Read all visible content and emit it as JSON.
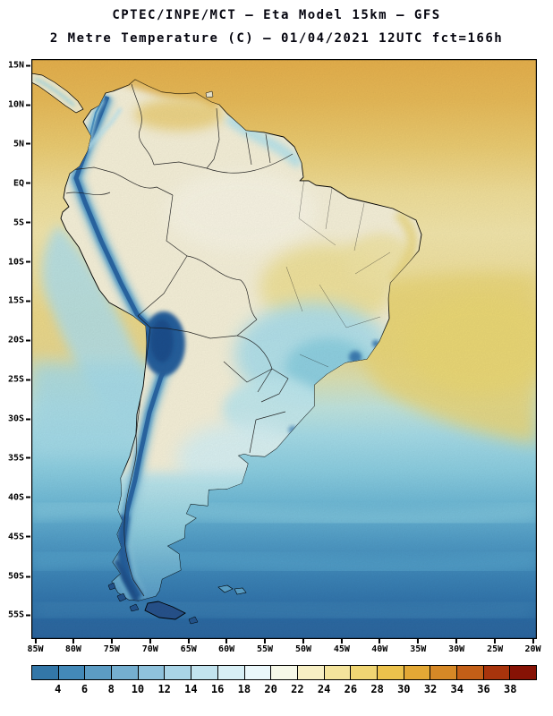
{
  "header": {
    "line1": "CPTEC/INPE/MCT —  Eta Model 15km — GFS",
    "line2": "2 Metre Temperature (C) — 01/04/2021 12UTC fct=166h"
  },
  "map": {
    "lat_ticks": [
      {
        "label": "15N",
        "pos": 0.011
      },
      {
        "label": "10N",
        "pos": 0.079
      },
      {
        "label": "5N",
        "pos": 0.146
      },
      {
        "label": "EQ",
        "pos": 0.214
      },
      {
        "label": "5S",
        "pos": 0.282
      },
      {
        "label": "10S",
        "pos": 0.35
      },
      {
        "label": "15S",
        "pos": 0.417
      },
      {
        "label": "20S",
        "pos": 0.485
      },
      {
        "label": "25S",
        "pos": 0.553
      },
      {
        "label": "30S",
        "pos": 0.621
      },
      {
        "label": "35S",
        "pos": 0.688
      },
      {
        "label": "40S",
        "pos": 0.756
      },
      {
        "label": "45S",
        "pos": 0.824
      },
      {
        "label": "50S",
        "pos": 0.892
      },
      {
        "label": "55S",
        "pos": 0.959
      }
    ],
    "lon_ticks": [
      {
        "label": "85W",
        "pos": 0.008
      },
      {
        "label": "80W",
        "pos": 0.083
      },
      {
        "label": "75W",
        "pos": 0.159
      },
      {
        "label": "70W",
        "pos": 0.235
      },
      {
        "label": "65W",
        "pos": 0.311
      },
      {
        "label": "60W",
        "pos": 0.386
      },
      {
        "label": "55W",
        "pos": 0.462
      },
      {
        "label": "50W",
        "pos": 0.538
      },
      {
        "label": "45W",
        "pos": 0.614
      },
      {
        "label": "40W",
        "pos": 0.689
      },
      {
        "label": "35W",
        "pos": 0.765
      },
      {
        "label": "30W",
        "pos": 0.841
      },
      {
        "label": "25W",
        "pos": 0.917
      },
      {
        "label": "20W",
        "pos": 0.992
      }
    ]
  },
  "colorbar": {
    "values": [
      "4",
      "6",
      "8",
      "10",
      "12",
      "14",
      "16",
      "18",
      "20",
      "22",
      "24",
      "26",
      "28",
      "30",
      "32",
      "34",
      "36",
      "38"
    ],
    "cell_colors": [
      "#3377a8",
      "#4389b8",
      "#5c9cc4",
      "#75afd0",
      "#8fc2dc",
      "#a9d4e6",
      "#c2e3ee",
      "#d8eff5",
      "#eaf7fa",
      "#f6f8e8",
      "#f7efc4",
      "#f4e49c",
      "#f0d573",
      "#ecc24c",
      "#e3a835",
      "#d68826",
      "#c35f17",
      "#a8340c",
      "#861205"
    ]
  },
  "chart_data": {
    "type": "heatmap",
    "title": "2 Metre Temperature (C)",
    "source": "CPTEC/INPE/MCT",
    "model": "Eta Model 15km — GFS",
    "valid": "01/04/2021 12UTC",
    "forecast": "fct=166h",
    "units": "C",
    "lat_ticks": [
      "15N",
      "10N",
      "5N",
      "EQ",
      "5S",
      "10S",
      "15S",
      "20S",
      "25S",
      "30S",
      "35S",
      "40S",
      "45S",
      "50S",
      "55S"
    ],
    "lon_ticks": [
      "85W",
      "80W",
      "75W",
      "70W",
      "65W",
      "60W",
      "55W",
      "50W",
      "45W",
      "40W",
      "35W",
      "30W",
      "25W",
      "20W"
    ],
    "scale_values": [
      4,
      6,
      8,
      10,
      12,
      14,
      16,
      18,
      20,
      22,
      24,
      26,
      28,
      30,
      32,
      34,
      36,
      38
    ],
    "scale_colors": [
      "#3377a8",
      "#4389b8",
      "#5c9cc4",
      "#75afd0",
      "#8fc2dc",
      "#a9d4e6",
      "#c2e3ee",
      "#d8eff5",
      "#eaf7fa",
      "#f6f8e8",
      "#f7efc4",
      "#f4e49c",
      "#f0d573",
      "#ecc24c",
      "#e3a835",
      "#d68826",
      "#c35f17",
      "#a8340c",
      "#861205"
    ],
    "legend_position": "bottom"
  }
}
